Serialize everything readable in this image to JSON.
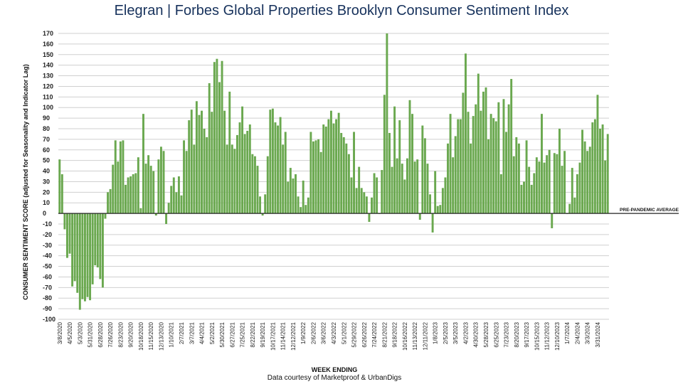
{
  "title": {
    "brand": "Elegran | Forbes Global Properties",
    "subtitle": "Brooklyn Consumer Sentiment Index"
  },
  "credit": "Data courtesy of Marketproof & UrbanDigs",
  "chart_data": {
    "type": "bar",
    "ylabel": "CONSUMER SENTIMENT SCORE (adjusted for Seasonality and Indicator Lag)",
    "xlabel": "WEEK ENDING",
    "ylim": [
      -100,
      170
    ],
    "ytick_step": 10,
    "grid": true,
    "bar_color": "#6aa84f",
    "baseline_label": "PRE-PANDEMIC AVERAGE",
    "xtick_labels": [
      "3/8/2020",
      "4/5/2020",
      "5/3/2020",
      "5/31/2020",
      "6/28/2020",
      "7/26/2020",
      "8/23/2020",
      "9/20/2020",
      "10/18/2020",
      "11/15/2020",
      "12/13/2020",
      "1/10/2021",
      "2/7/2021",
      "3/7/2021",
      "4/4/2021",
      "5/2/2021",
      "5/30/2021",
      "6/27/2021",
      "7/25/2021",
      "8/22/2021",
      "9/19/2021",
      "10/17/2021",
      "11/14/2021",
      "12/12/2021",
      "1/9/2022",
      "2/6/2022",
      "3/6/2022",
      "4/3/2022",
      "5/1/2022",
      "5/29/2022",
      "6/26/2022",
      "7/24/2022",
      "8/21/2022",
      "9/18/2022",
      "10/16/2022",
      "11/13/2022",
      "12/11/2022",
      "1/8/2023",
      "2/5/2023",
      "3/5/2023",
      "4/2/2023",
      "4/30/2023",
      "5/28/2023",
      "6/25/2023",
      "7/23/2023",
      "8/20/2023",
      "9/17/2023",
      "10/15/2023",
      "11/12/2023",
      "12/10/2023",
      "1/7/2024",
      "2/4/2024",
      "3/3/2024",
      "3/31/2024"
    ],
    "values": [
      51,
      37,
      -15,
      -42,
      -38,
      -69,
      -64,
      -75,
      -91,
      -81,
      -83,
      -79,
      -82,
      -67,
      -49,
      -51,
      -62,
      -70,
      -5,
      20,
      23,
      46,
      69,
      49,
      68,
      69,
      27,
      34,
      35,
      37,
      38,
      53,
      5,
      94,
      47,
      55,
      45,
      40,
      -2,
      51,
      63,
      59,
      -10,
      10,
      26,
      34,
      20,
      35,
      17,
      69,
      59,
      88,
      98,
      65,
      106,
      93,
      97,
      80,
      72,
      123,
      96,
      143,
      146,
      124,
      144,
      97,
      65,
      115,
      65,
      61,
      74,
      86,
      101,
      75,
      78,
      84,
      56,
      54,
      45,
      16,
      -2,
      18,
      54,
      98,
      99,
      86,
      83,
      91,
      65,
      77,
      30,
      43,
      33,
      37,
      16,
      6,
      31,
      8,
      15,
      77,
      68,
      69,
      70,
      58,
      84,
      82,
      89,
      97,
      85,
      89,
      95,
      76,
      72,
      66,
      56,
      34,
      77,
      24,
      44,
      24,
      20,
      16,
      -8,
      15,
      38,
      34,
      0,
      41,
      112,
      170,
      76,
      44,
      101,
      52,
      88,
      47,
      32,
      52,
      107,
      94,
      49,
      51,
      -6,
      83,
      71,
      47,
      18,
      -18,
      40,
      7,
      8,
      24,
      34,
      66,
      94,
      53,
      73,
      89,
      89,
      114,
      151,
      96,
      66,
      92,
      103,
      132,
      97,
      115,
      119,
      70,
      94,
      90,
      87,
      105,
      37,
      108,
      77,
      103,
      127,
      54,
      72,
      66,
      27,
      30,
      69,
      44,
      27,
      38,
      53,
      49,
      94,
      48,
      55,
      60,
      -14,
      57,
      56,
      80,
      45,
      59,
      0,
      9,
      43,
      15,
      37,
      48,
      79,
      68,
      59,
      63,
      86,
      89,
      112,
      80,
      84,
      50,
      75
    ]
  }
}
